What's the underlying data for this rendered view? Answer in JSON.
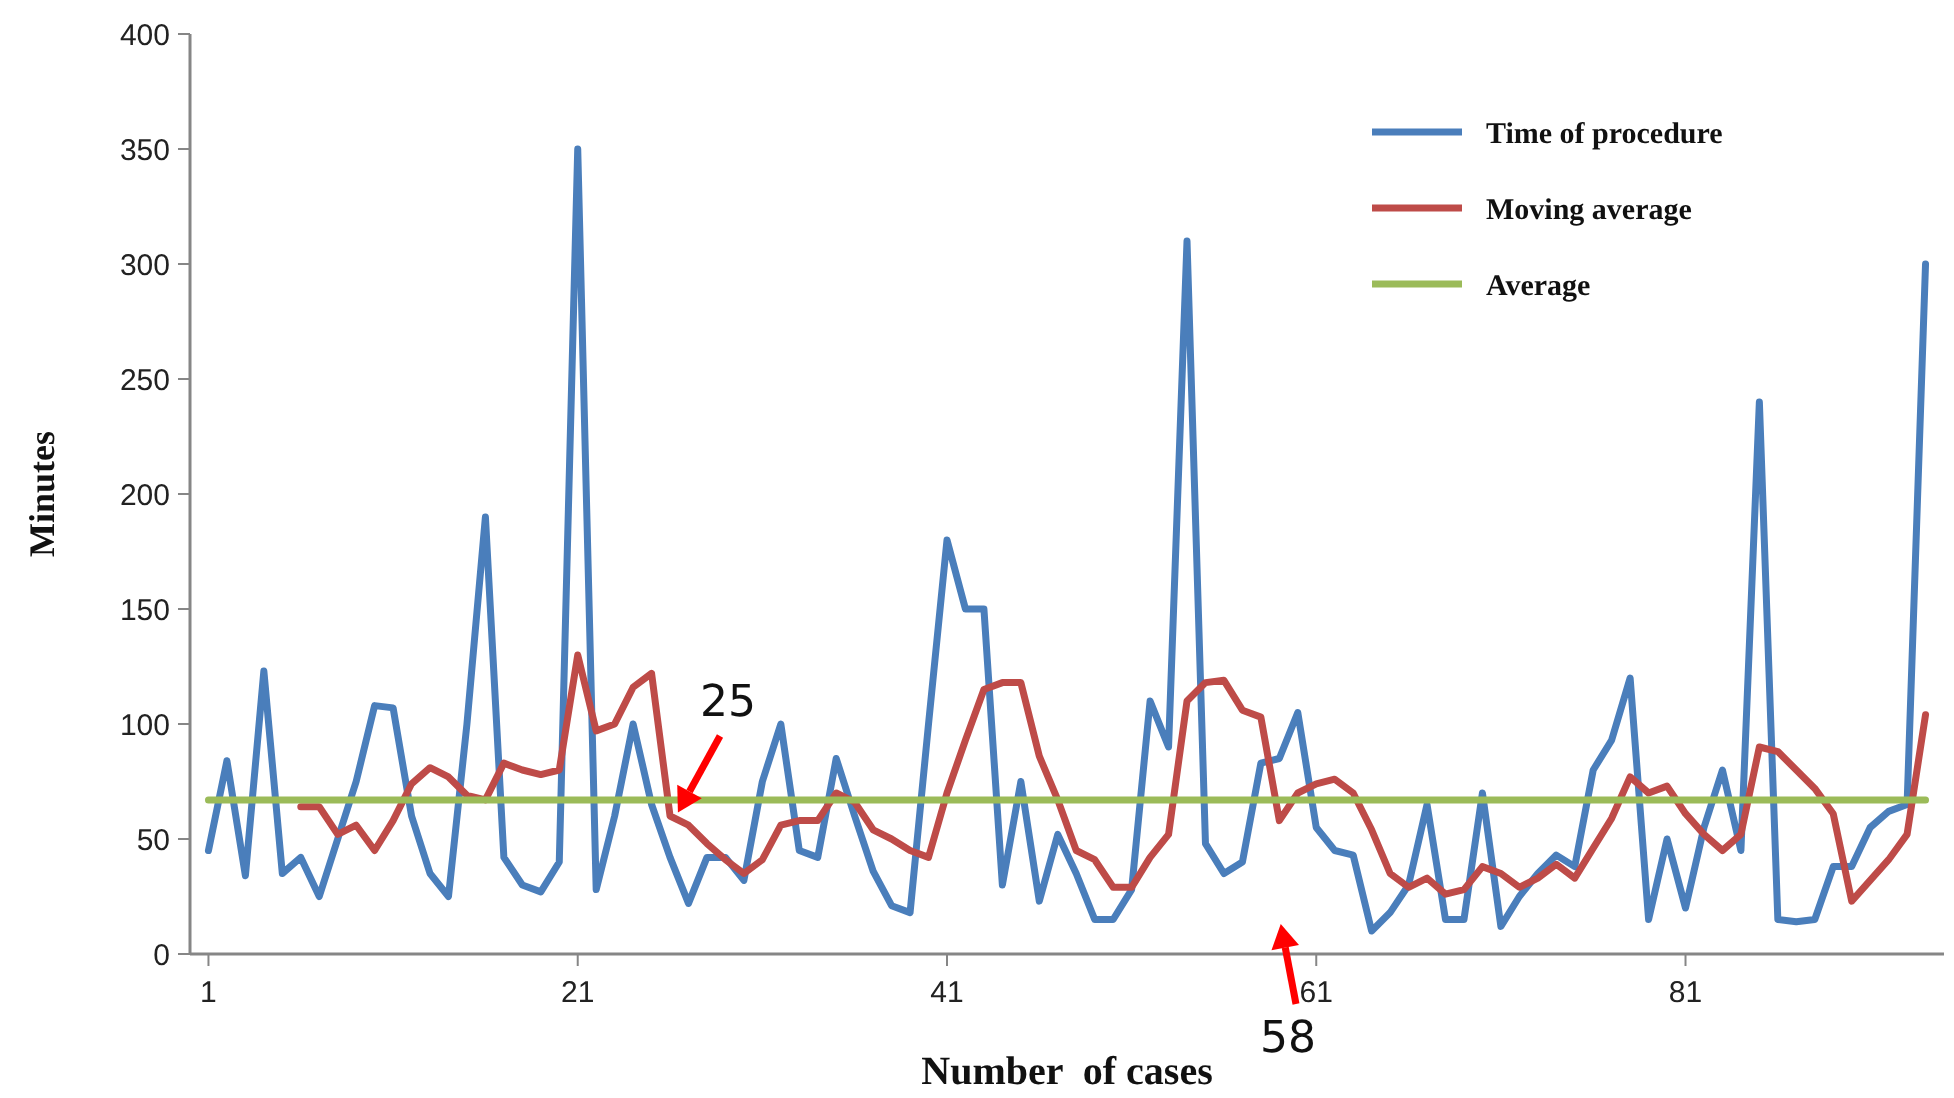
{
  "chart_data": {
    "type": "line",
    "xlabel": "Number  of cases",
    "ylabel": "Minutes",
    "xlim": [
      0,
      95
    ],
    "xticks": [
      1,
      21,
      41,
      61,
      81
    ],
    "ylim": [
      0,
      400
    ],
    "yticks": [
      0,
      50,
      100,
      150,
      200,
      250,
      300,
      350,
      400
    ],
    "x": [
      1,
      2,
      3,
      4,
      5,
      6,
      7,
      8,
      9,
      10,
      11,
      12,
      13,
      14,
      15,
      16,
      17,
      18,
      19,
      20,
      21,
      22,
      23,
      24,
      25,
      26,
      27,
      28,
      29,
      30,
      31,
      32,
      33,
      34,
      35,
      36,
      37,
      38,
      39,
      40,
      41,
      42,
      43,
      44,
      45,
      46,
      47,
      48,
      49,
      50,
      51,
      52,
      53,
      54,
      55,
      56,
      57,
      58,
      59,
      60,
      61,
      62,
      63,
      64,
      65,
      66,
      67,
      68,
      69,
      70,
      71,
      72,
      73,
      74,
      75,
      76,
      77,
      78,
      79,
      80,
      81,
      82,
      83,
      84,
      85,
      86,
      87,
      88,
      89,
      90,
      91,
      92,
      93,
      94
    ],
    "grid": false,
    "legend": "top right",
    "marker": "none",
    "line_style": "solid",
    "series": [
      {
        "name": "Time of procedure",
        "color": "#4a7ebb",
        "values": [
          45,
          84,
          34,
          123,
          35,
          42,
          25,
          50,
          75,
          108,
          107,
          60,
          35,
          25,
          100,
          190,
          42,
          30,
          27,
          40,
          350,
          28,
          60,
          100,
          65,
          42,
          22,
          42,
          42,
          32,
          75,
          100,
          45,
          42,
          85,
          60,
          36,
          21,
          18,
          100,
          180,
          150,
          150,
          30,
          75,
          23,
          52,
          35,
          15,
          15,
          28,
          110,
          90,
          310,
          48,
          35,
          40,
          83,
          85,
          105,
          55,
          45,
          43,
          10,
          18,
          30,
          65,
          15,
          15,
          70,
          12,
          25,
          35,
          43,
          38,
          80,
          93,
          120,
          15,
          50,
          20,
          55,
          80,
          45,
          240,
          15,
          14,
          15,
          38,
          38,
          55,
          62,
          65,
          300
        ]
      },
      {
        "name": "Moving average",
        "color": "#be4b48",
        "values": [
          null,
          null,
          null,
          null,
          null,
          64,
          64,
          52,
          56,
          45,
          58,
          74,
          81,
          77,
          69,
          67,
          83,
          80,
          78,
          80,
          130,
          97,
          100,
          116,
          122,
          60,
          56,
          48,
          41,
          35,
          41,
          56,
          58,
          58,
          70,
          66,
          54,
          50,
          45,
          42,
          70,
          93,
          115,
          118,
          118,
          86,
          67,
          45,
          41,
          29,
          29,
          42,
          52,
          110,
          118,
          119,
          106,
          103,
          58,
          70,
          74,
          76,
          70,
          54,
          35,
          29,
          33,
          26,
          28,
          38,
          35,
          29,
          33,
          39,
          33,
          46,
          59,
          77,
          70,
          73,
          61,
          52,
          45,
          52,
          90,
          88,
          80,
          72,
          61,
          23,
          32,
          41,
          52,
          104
        ]
      },
      {
        "name": "Average",
        "color": "#9bbb59",
        "x": [
          1,
          94
        ],
        "values": [
          67,
          67
        ]
      }
    ],
    "annotations": [
      "25",
      "58"
    ]
  }
}
